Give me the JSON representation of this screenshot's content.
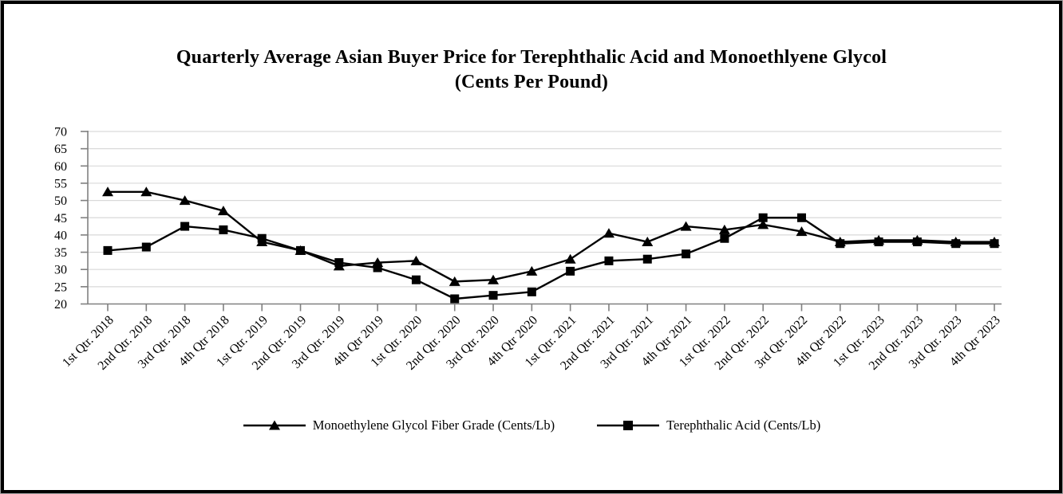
{
  "title": {
    "line1": "Quarterly Average Asian Buyer Price for Terephthalic Acid and Monoethlyene Glycol",
    "line2": "(Cents Per Pound)"
  },
  "frame": {
    "border_color": "#000000",
    "outer_line_color": "#9e9e9e"
  },
  "chart_data": {
    "type": "line",
    "title": "Quarterly Average Asian Buyer Price for Terephthalic Acid and Monoethlyene Glycol (Cents Per Pound)",
    "categories": [
      "1st Qtr. 2018",
      "2nd Qtr. 2018",
      "3rd Qtr. 2018",
      "4th Qtr 2018",
      "1st Qtr. 2019",
      "2nd Qtr. 2019",
      "3rd Qtr. 2019",
      "4th Qtr 2019",
      "1st Qtr. 2020",
      "2nd Qtr. 2020",
      "3rd Qtr. 2020",
      "4th Qtr 2020",
      "1st Qtr. 2021",
      "2nd Qtr. 2021",
      "3rd Qtr. 2021",
      "4th Qtr 2021",
      "1st Qtr. 2022",
      "2nd Qtr. 2022",
      "3rd Qtr. 2022",
      "4th Qtr 2022",
      "1st Qtr. 2023",
      "2nd Qtr. 2023",
      "3rd Qtr. 2023",
      "4th Qtr 2023"
    ],
    "series": [
      {
        "name": "Monoethylene Glycol Fiber Grade (Cents/Lb)",
        "marker": "triangle",
        "color": "#000000",
        "values": [
          52.5,
          52.5,
          50,
          47,
          38,
          35.5,
          31,
          32,
          32.5,
          26.5,
          27,
          29.5,
          33,
          40.5,
          38,
          42.5,
          41.5,
          43,
          41,
          38,
          38.5,
          38.5,
          38,
          38
        ]
      },
      {
        "name": "Terephthalic Acid (Cents/Lb)",
        "marker": "square",
        "color": "#000000",
        "values": [
          35.5,
          36.5,
          42.5,
          41.5,
          39,
          35.5,
          32,
          30.5,
          27,
          21.5,
          22.5,
          23.5,
          29.5,
          32.5,
          33,
          34.5,
          39,
          45,
          45,
          37.5,
          38,
          38,
          37.5,
          37.5
        ]
      }
    ],
    "xlabel": "",
    "ylabel": "",
    "ylim": [
      20,
      70
    ],
    "yticks": [
      20,
      25,
      30,
      35,
      40,
      45,
      50,
      55,
      60,
      65,
      70
    ],
    "grid": "horizontal",
    "legend_position": "bottom",
    "colors": {
      "gridline": "#d9d9d9",
      "axis": "#808080",
      "series": "#000000"
    }
  }
}
